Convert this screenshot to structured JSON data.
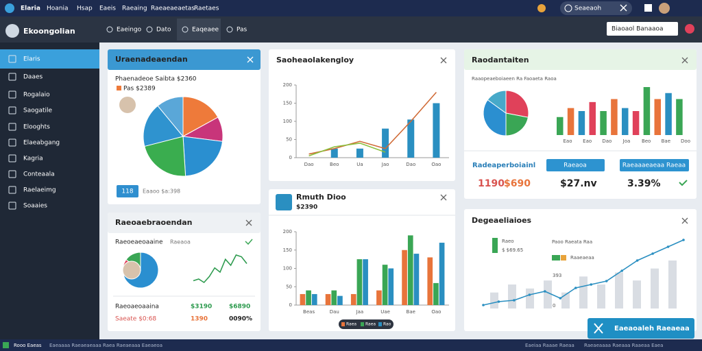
{
  "topbar": {
    "brand": "Elaria",
    "menu": [
      "Hoania",
      "Hsap",
      "Eaeis",
      "Raeaing",
      "Raeaeaeaetas",
      "Raetaes"
    ],
    "search": "Seaeaoh"
  },
  "sidebar": {
    "title": "Ekoongolian",
    "items": [
      "Elaris",
      "Daaes",
      "Rogalaio",
      "Saogatile",
      "Elooghts",
      "Elaeabgang",
      "Kagria",
      "Conteaala",
      "Raelaeimg",
      "Soaaies"
    ]
  },
  "toolbar": {
    "tabs": [
      "Eaeingo",
      "Dato",
      "Eaqeaee",
      "Pas"
    ],
    "dropdown": "Biaoaol Banaaoa"
  },
  "cards": [
    {
      "title": "Uraenadeaendan",
      "subtitle": "Phaenadeoe Saibta $2360",
      "label": "Pas $2389",
      "button": "118",
      "note": "Eaaoo $a:398",
      "pie": {
        "values": [
          17,
          10,
          22,
          22,
          18,
          11
        ],
        "colors": [
          "#ee7a3a",
          "#c8357a",
          "#2a8fd0",
          "#3aad4f",
          "#2f93cf",
          "#5aa7d8"
        ]
      }
    },
    {
      "title": "Raeoaebraoendan",
      "subtitle": "Raeoeaeoaaine",
      "subnote": "Raeaoa",
      "pie": {
        "values": [
          70,
          15,
          15
        ],
        "colors": [
          "#2a8fd0",
          "#e0415a",
          "#3aa655"
        ]
      },
      "sparkline": {
        "color": "#2e9b4f",
        "values": [
          10,
          12,
          8,
          15,
          25,
          20,
          35,
          28,
          40,
          38,
          30
        ]
      },
      "rows": [
        [
          "Raeoaeoaaina",
          "$3190",
          "$6890"
        ],
        [
          "Saeate $0:68",
          "1390",
          "0090%"
        ]
      ]
    },
    {
      "title": "Saoheaolakengloy",
      "chart": {
        "categories": [
          "Dao",
          "Beo",
          "Ua",
          "Jao",
          "Dao",
          "Oao"
        ],
        "ylim": [
          0,
          200
        ],
        "yticks": [
          0,
          50,
          100,
          150,
          200
        ],
        "bars": {
          "color": "#2a8fc1",
          "values": [
            0,
            25,
            25,
            80,
            105,
            150
          ]
        },
        "lines": [
          {
            "color": "#d06a35",
            "values": [
              10,
              25,
              45,
              25,
              100,
              180
            ]
          },
          {
            "color": "#8bbf3c",
            "values": [
              5,
              30,
              40,
              15,
              null,
              null
            ]
          }
        ]
      }
    },
    {
      "title": "Rmuth Dioo",
      "subtitle": "$2390",
      "legend": [
        "Raea",
        "Raea",
        "Rao"
      ],
      "chart": {
        "categories": [
          "Beas",
          "Dau",
          "Jaa",
          "Uae",
          "Bae",
          "Oao"
        ],
        "ylim": [
          0,
          200
        ],
        "yticks": [
          0,
          50,
          100,
          150,
          200
        ],
        "series": [
          {
            "name": "Raea",
            "color": "#e8743b",
            "values": [
              30,
              30,
              30,
              40,
              150,
              130
            ]
          },
          {
            "name": "Raea",
            "color": "#3aa655",
            "values": [
              40,
              40,
              125,
              110,
              190,
              60
            ]
          },
          {
            "name": "Rao",
            "color": "#2a8fc1",
            "values": [
              30,
              25,
              125,
              100,
              140,
              170
            ]
          }
        ]
      }
    },
    {
      "title": "Raodantaiten",
      "subtitle": "Raaopeaeboiaeen Ra Faoaeta Raoa",
      "pie": {
        "values": [
          28,
          22,
          35,
          15
        ],
        "colors": [
          "#e0415a",
          "#3aa655",
          "#2b8fd0",
          "#47a9c9"
        ]
      },
      "bars": {
        "values": [
          30,
          45,
          40,
          55,
          40,
          60,
          45,
          40,
          80,
          60,
          70,
          60
        ],
        "colors": [
          "#3aa655",
          "#e8743b",
          "#2a8fc1",
          "#e0415a",
          "#3aa655",
          "#e8743b",
          "#2a8fc1",
          "#e0415a",
          "#3aa655",
          "#e8743b",
          "#2a8fc1",
          "#3aa655"
        ]
      },
      "bar_labels": [
        "Eao",
        "Eao",
        "Dao",
        "Joa",
        "Beo",
        "Bae",
        "Doo"
      ],
      "heading": "Radeaperboiainl",
      "buttons": [
        "Raeaoa",
        "Raeaaaeaeaa Raeaa"
      ],
      "stats": [
        "1190",
        "$690",
        "$27.nv",
        "3.39%"
      ]
    },
    {
      "title": "Degeaeliaioes",
      "legend": [
        "Raeo",
        "$ $69.65",
        "Paoo Raeata Raa",
        "Raaeaeaa",
        "393",
        "0"
      ],
      "line": {
        "color": "#2a8fc1",
        "values": [
          5,
          10,
          12,
          20,
          25,
          15,
          30,
          35,
          40,
          55,
          70,
          80,
          90,
          100
        ]
      },
      "bars": {
        "color": "#d9dde3",
        "values": [
          20,
          30,
          25,
          35,
          20,
          40,
          30,
          45,
          35,
          50,
          60
        ]
      }
    }
  ],
  "fab": "Eaeaoaleh Raeaeaa",
  "footer": [
    "Rooo Eaeas",
    "Eaeaaaa Raeaeaeaaa Raea Raeaeaaa Eaeaeoa",
    "Eaeiaa Raaae Raeaa",
    "Raeaeaaaa Raeaaa Raaeaa Eaea"
  ]
}
